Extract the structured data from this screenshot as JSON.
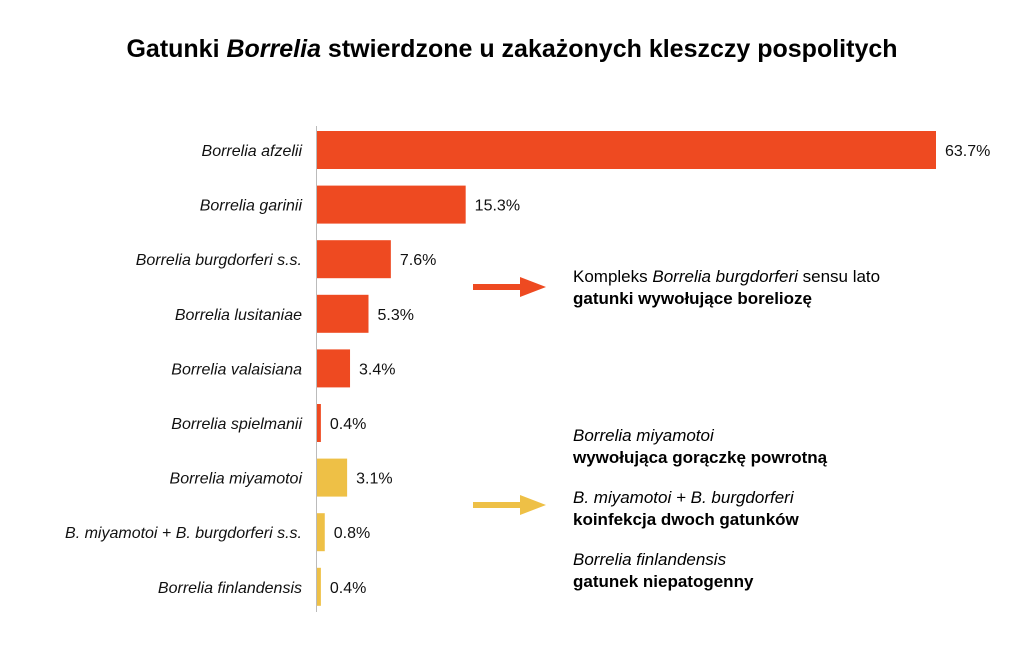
{
  "title": {
    "prefix": "Gatunki ",
    "genus": "Borrelia",
    "suffix": " stwierdzone u zakażonych kleszczy pospolitych"
  },
  "colors": {
    "red": "#ee4a21",
    "yellow": "#eec046",
    "axis": "#bbbbbb"
  },
  "chart_data": {
    "type": "bar",
    "orientation": "horizontal",
    "title": "Gatunki Borrelia stwierdzone u zakażonych kleszczy pospolitych",
    "categories": [
      "Borrelia afzelii",
      "Borrelia garinii",
      "Borrelia burgdorferi s.s.",
      "Borrelia lusitaniae",
      "Borrelia valaisiana",
      "Borrelia spielmanii",
      "Borrelia miyamotoi",
      "B. miyamotoi + B. burgdorferi s.s.",
      "Borrelia finlandensis"
    ],
    "values": [
      63.7,
      15.3,
      7.6,
      5.3,
      3.4,
      0.4,
      3.1,
      0.8,
      0.4
    ],
    "value_labels": [
      "63.7%",
      "15.3%",
      "7.6%",
      "5.3%",
      "3.4%",
      "0.4%",
      "3.1%",
      "0.8%",
      "0.4%"
    ],
    "groups": [
      "red",
      "red",
      "red",
      "red",
      "red",
      "red",
      "yellow",
      "yellow",
      "yellow"
    ],
    "unit": "%",
    "xlim": [
      0,
      63.7
    ],
    "grid": false,
    "legend": "none"
  },
  "annotations": {
    "complex": {
      "line1_prefix": "Kompleks ",
      "line1_italic": "Borrelia burgdorferi",
      "line1_suffix": " sensu lato",
      "line2": "gatunki wywołujące boreliozę"
    },
    "miyamotoi": {
      "line1": "Borrelia miyamotoi",
      "line2": "wywołująca gorączkę powrotną"
    },
    "coinfection": {
      "line1": "B. miyamotoi + B. burgdorferi",
      "line2": "koinfekcja dwoch gatunków"
    },
    "finlandensis": {
      "line1": "Borrelia finlandensis",
      "line2": "gatunek niepatogenny"
    }
  }
}
